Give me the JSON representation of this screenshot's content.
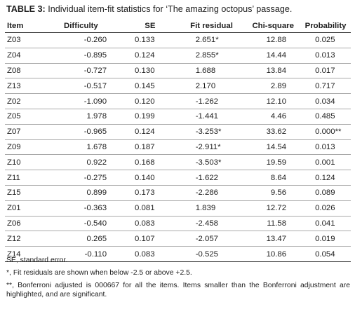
{
  "caption": {
    "label": "TABLE 3:",
    "text": "Individual item-fit statistics for ‘The amazing octopus’ passage."
  },
  "table": {
    "headers": [
      "Item",
      "Difficulty",
      "SE",
      "Fit residual",
      "Chi-square",
      "Probability"
    ],
    "rows": [
      [
        "Z03",
        "-0.260",
        "0.133",
        "2.651*",
        "12.88",
        "0.025"
      ],
      [
        "Z04",
        "-0.895",
        "0.124",
        "2.855*",
        "14.44",
        "0.013"
      ],
      [
        "Z08",
        "-0.727",
        "0.130",
        "1.688",
        "13.84",
        "0.017"
      ],
      [
        "Z13",
        "-0.517",
        "0.145",
        "2.170",
        "2.89",
        "0.717"
      ],
      [
        "Z02",
        "-1.090",
        "0.120",
        "-1.262",
        "12.10",
        "0.034"
      ],
      [
        "Z05",
        "1.978",
        "0.199",
        "-1.441",
        "4.46",
        "0.485"
      ],
      [
        "Z07",
        "-0.965",
        "0.124",
        "-3.253*",
        "33.62",
        "0.000**"
      ],
      [
        "Z09",
        "1.678",
        "0.187",
        "-2.911*",
        "14.54",
        "0.013"
      ],
      [
        "Z10",
        "0.922",
        "0.168",
        "-3.503*",
        "19.59",
        "0.001"
      ],
      [
        "Z11",
        "-0.275",
        "0.140",
        "-1.622",
        "8.64",
        "0.124"
      ],
      [
        "Z15",
        "0.899",
        "0.173",
        "-2.286",
        "9.56",
        "0.089"
      ],
      [
        "Z01",
        "-0.363",
        "0.081",
        "1.839",
        "12.72",
        "0.026"
      ],
      [
        "Z06",
        "-0.540",
        "0.083",
        "-2.458",
        "11.58",
        "0.041"
      ],
      [
        "Z12",
        "0.265",
        "0.107",
        "-2.057",
        "13.47",
        "0.019"
      ],
      [
        "Z14",
        "-0.110",
        "0.083",
        "-0.525",
        "10.86",
        "0.054"
      ]
    ]
  },
  "notes": [
    "SE, standard error.",
    "*, Fit residuals are shown when below -2.5 or above +2.5.",
    "**, Bonferroni adjusted is 000667 for all the items. Items smaller than the Bonferroni adjustment are highlighted, and are significant."
  ]
}
